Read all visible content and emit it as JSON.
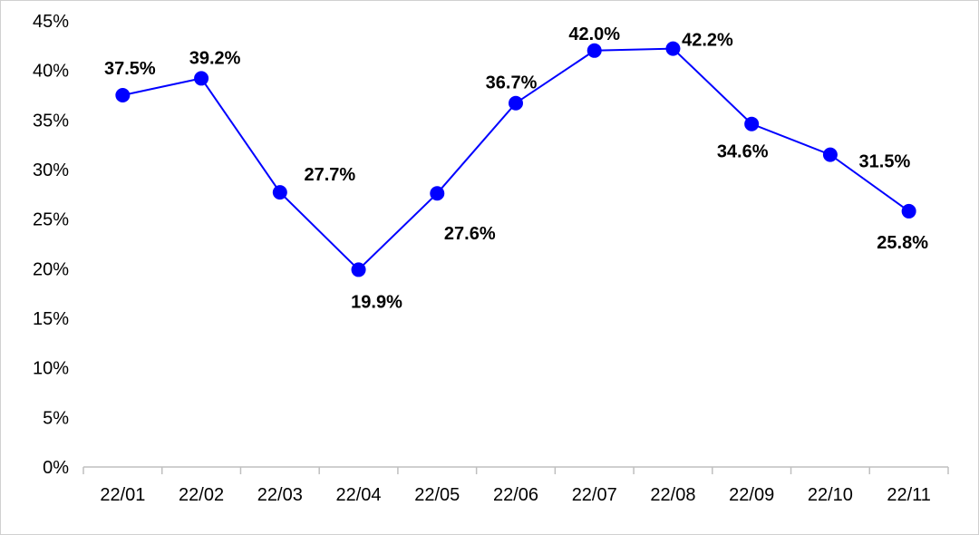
{
  "chart_data": {
    "type": "line",
    "title": "",
    "xlabel": "",
    "ylabel": "",
    "categories": [
      "22/01",
      "22/02",
      "22/03",
      "22/04",
      "22/05",
      "22/06",
      "22/07",
      "22/08",
      "22/09",
      "22/10",
      "22/11"
    ],
    "series": [
      {
        "values": [
          37.5,
          39.2,
          27.7,
          19.9,
          27.6,
          36.7,
          42.0,
          42.2,
          34.6,
          31.5,
          25.8
        ],
        "data_labels": [
          "37.5%",
          "39.2%",
          "27.7%",
          "19.9%",
          "27.6%",
          "36.7%",
          "42.0%",
          "42.2%",
          "34.6%",
          "31.5%",
          "25.8%"
        ],
        "color": "#0000ff"
      }
    ],
    "ylim": [
      0,
      45
    ],
    "yticks": [
      "0%",
      "5%",
      "10%",
      "15%",
      "20%",
      "25%",
      "30%",
      "35%",
      "40%",
      "45%"
    ],
    "grid": false,
    "legend": "none",
    "axis_color": "#bfbfbf"
  }
}
